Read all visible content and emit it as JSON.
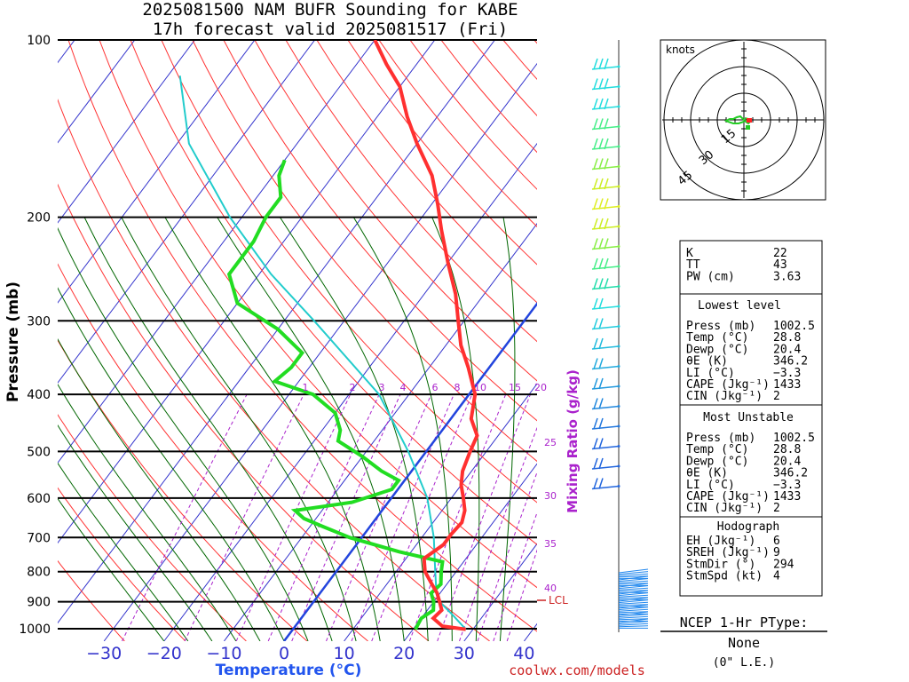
{
  "title": {
    "line1": "2025081500 NAM BUFR Sounding for KABE",
    "line2": "17h forecast valid 2025081517 (Fri)"
  },
  "axes": {
    "ylabel": "Pressure (mb)",
    "xlabel": "Temperature (°C)",
    "pressure_ticks": [
      "100",
      "200",
      "300",
      "400",
      "500",
      "600",
      "700",
      "800",
      "900",
      "1000"
    ],
    "temp_ticks": [
      "−30",
      "−20",
      "−10",
      "0",
      "10",
      "20",
      "30",
      "40"
    ]
  },
  "mixing_ratio": {
    "label": "Mixing Ratio (g/kg)",
    "top_labels": [
      "1",
      "2",
      "3",
      "4",
      "6",
      "8",
      "10",
      "15",
      "20"
    ],
    "side_labels": [
      "25",
      "30",
      "35",
      "40"
    ]
  },
  "lcl_label": "LCL",
  "credit": "coolwx.com/models",
  "hodograph": {
    "units": "knots",
    "rings": [
      "15",
      "30",
      "45"
    ]
  },
  "indices": {
    "top": [
      {
        "label": "K",
        "value": "22"
      },
      {
        "label": "TT",
        "value": "43"
      },
      {
        "label": "PW (cm)",
        "value": "3.63"
      }
    ],
    "lowest_title": "Lowest level",
    "lowest": [
      {
        "label": "Press (mb)",
        "value": "1002.5"
      },
      {
        "label": "Temp (°C)",
        "value": "28.8"
      },
      {
        "label": "Dewp (°C)",
        "value": "20.4"
      },
      {
        "label": "θE (K)",
        "value": "346.2"
      },
      {
        "label": "LI (°C)",
        "value": "−3.3"
      },
      {
        "label": "CAPE (Jkg⁻¹)",
        "value": "1433"
      },
      {
        "label": "CIN (Jkg⁻¹)",
        "value": "2"
      }
    ],
    "unstable_title": "Most Unstable",
    "unstable": [
      {
        "label": "Press (mb)",
        "value": "1002.5"
      },
      {
        "label": "Temp (°C)",
        "value": "28.8"
      },
      {
        "label": "Dewp (°C)",
        "value": "20.4"
      },
      {
        "label": "θE (K)",
        "value": "346.2"
      },
      {
        "label": "LI (°C)",
        "value": "−3.3"
      },
      {
        "label": "CAPE (Jkg⁻¹)",
        "value": "1433"
      },
      {
        "label": "CIN (Jkg⁻¹)",
        "value": "2"
      }
    ],
    "hodo_title": "Hodograph",
    "hodo": [
      {
        "label": "EH (Jkg⁻¹)",
        "value": "6"
      },
      {
        "label": "SREH (Jkg⁻¹)",
        "value": "9"
      },
      {
        "label": "StmDir (°)",
        "value": "294"
      },
      {
        "label": "StmSpd (kt)",
        "value": "4"
      }
    ]
  },
  "ptype": {
    "title": "NCEP 1-Hr PType:",
    "value": "None",
    "note": "(0\" L.E.)"
  },
  "colors": {
    "temperature": "#ff3030",
    "dewpoint": "#22dd22",
    "parcel": "#22cccc",
    "isotherm": "#3333cc",
    "dry_adiabat": "#ff3333",
    "moist_adiabat": "#006600",
    "mixing_ratio": "#aa22cc",
    "zero_isotherm": "#2244dd"
  },
  "chart_data": {
    "type": "line",
    "title": "2025081500 NAM BUFR Sounding for KABE",
    "xlabel": "Temperature (°C)",
    "ylabel": "Pressure (mb)",
    "xlim": [
      -40,
      40
    ],
    "ylim": [
      1050,
      100
    ],
    "yscale": "log",
    "series": [
      {
        "values": [
          [
            1002.5,
            28.8
          ],
          [
            990,
            24.5
          ],
          [
            960,
            22.0
          ],
          [
            930,
            22.4
          ],
          [
            900,
            21.0
          ],
          [
            870,
            19.5
          ],
          [
            840,
            17.5
          ],
          [
            800,
            14.8
          ],
          [
            760,
            13.0
          ],
          [
            720,
            14.5
          ],
          [
            690,
            14.5
          ],
          [
            660,
            14.8
          ],
          [
            630,
            13.8
          ],
          [
            600,
            12.0
          ],
          [
            570,
            10.0
          ],
          [
            540,
            8.5
          ],
          [
            500,
            7.3
          ],
          [
            470,
            6.5
          ],
          [
            440,
            3.4
          ],
          [
            400,
            1.0
          ],
          [
            360,
            -3.5
          ],
          [
            330,
            -7.5
          ],
          [
            300,
            -11.0
          ],
          [
            270,
            -14.8
          ],
          [
            240,
            -19.8
          ],
          [
            210,
            -25.2
          ],
          [
            190,
            -29.0
          ],
          [
            170,
            -33.5
          ],
          [
            150,
            -40.0
          ],
          [
            135,
            -45.0
          ],
          [
            120,
            -50.0
          ],
          [
            110,
            -55.0
          ],
          [
            100,
            -60.0
          ]
        ]
      },
      {
        "values": [
          [
            1002.5,
            20.4
          ],
          [
            960,
            20.0
          ],
          [
            930,
            21.0
          ],
          [
            900,
            20.0
          ],
          [
            870,
            18.5
          ],
          [
            840,
            19.0
          ],
          [
            800,
            17.5
          ],
          [
            770,
            16.5
          ],
          [
            740,
            8.0
          ],
          [
            700,
            -2.0
          ],
          [
            670,
            -8.0
          ],
          [
            650,
            -12.0
          ],
          [
            630,
            -14.5
          ],
          [
            610,
            -6.0
          ],
          [
            580,
            -1.0
          ],
          [
            560,
            -1.0
          ],
          [
            540,
            -5.0
          ],
          [
            510,
            -10.0
          ],
          [
            480,
            -16.0
          ],
          [
            460,
            -17.0
          ],
          [
            430,
            -20.0
          ],
          [
            400,
            -26.0
          ],
          [
            380,
            -34.0
          ],
          [
            360,
            -33.0
          ],
          [
            340,
            -33.0
          ],
          [
            310,
            -40.0
          ],
          [
            280,
            -50.0
          ],
          [
            250,
            -55.0
          ],
          [
            220,
            -55.0
          ],
          [
            200,
            -56.0
          ],
          [
            185,
            -56.0
          ],
          [
            170,
            -59.0
          ],
          [
            160,
            -60.0
          ]
        ]
      },
      {
        "values": [
          [
            1002.5,
            28.8
          ],
          [
            950,
            25.0
          ],
          [
            900,
            21.0
          ],
          [
            860,
            19.0
          ],
          [
            800,
            16.5
          ],
          [
            700,
            12.0
          ],
          [
            600,
            6.0
          ],
          [
            500,
            -3.0
          ],
          [
            400,
            -15.0
          ],
          [
            300,
            -35.0
          ],
          [
            250,
            -48.0
          ],
          [
            200,
            -62.0
          ],
          [
            150,
            -78.0
          ],
          [
            115,
            -88.0
          ]
        ]
      }
    ],
    "lcl_pressure": 885
  }
}
